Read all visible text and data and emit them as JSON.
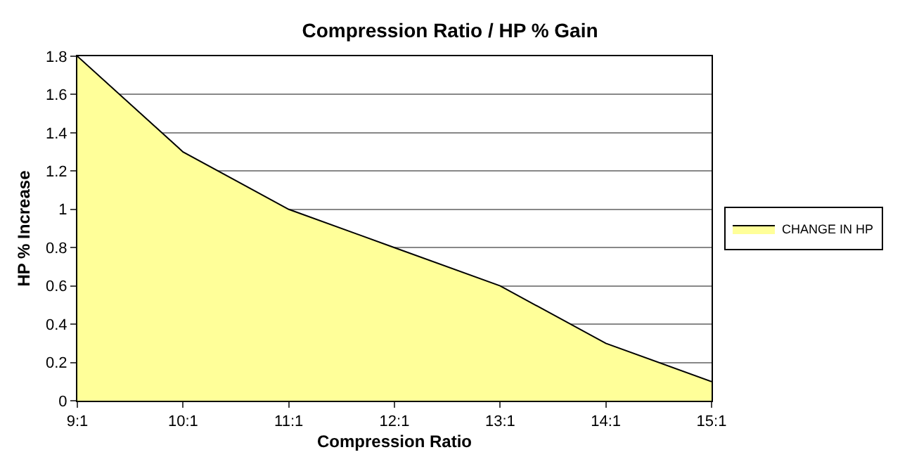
{
  "chart_data": {
    "type": "area",
    "title": "Compression Ratio / HP % Gain",
    "xlabel": "Compression Ratio",
    "ylabel": "HP % Increase",
    "categories": [
      "9:1",
      "10:1",
      "11:1",
      "12:1",
      "13:1",
      "14:1",
      "15:1"
    ],
    "series": [
      {
        "name": "CHANGE IN HP",
        "color": "#ffff99",
        "values": [
          1.8,
          1.3,
          1.0,
          0.8,
          0.6,
          0.3,
          0.1
        ]
      }
    ],
    "ylim": [
      0,
      1.8
    ],
    "yticks": [
      0,
      {
        "value": 0.2,
        "label": "0.2"
      },
      {
        "value": 0.4,
        "label": "0.4"
      },
      {
        "value": 0.6,
        "label": "0.6"
      },
      {
        "value": 0.8,
        "label": "0.8"
      },
      1,
      {
        "value": 1.2,
        "label": "1.2"
      },
      {
        "value": 1.4,
        "label": "1.4"
      },
      {
        "value": 1.6,
        "label": "1.6"
      },
      {
        "value": 1.8,
        "label": "1.8"
      }
    ],
    "grid": "y",
    "legend": "right"
  }
}
